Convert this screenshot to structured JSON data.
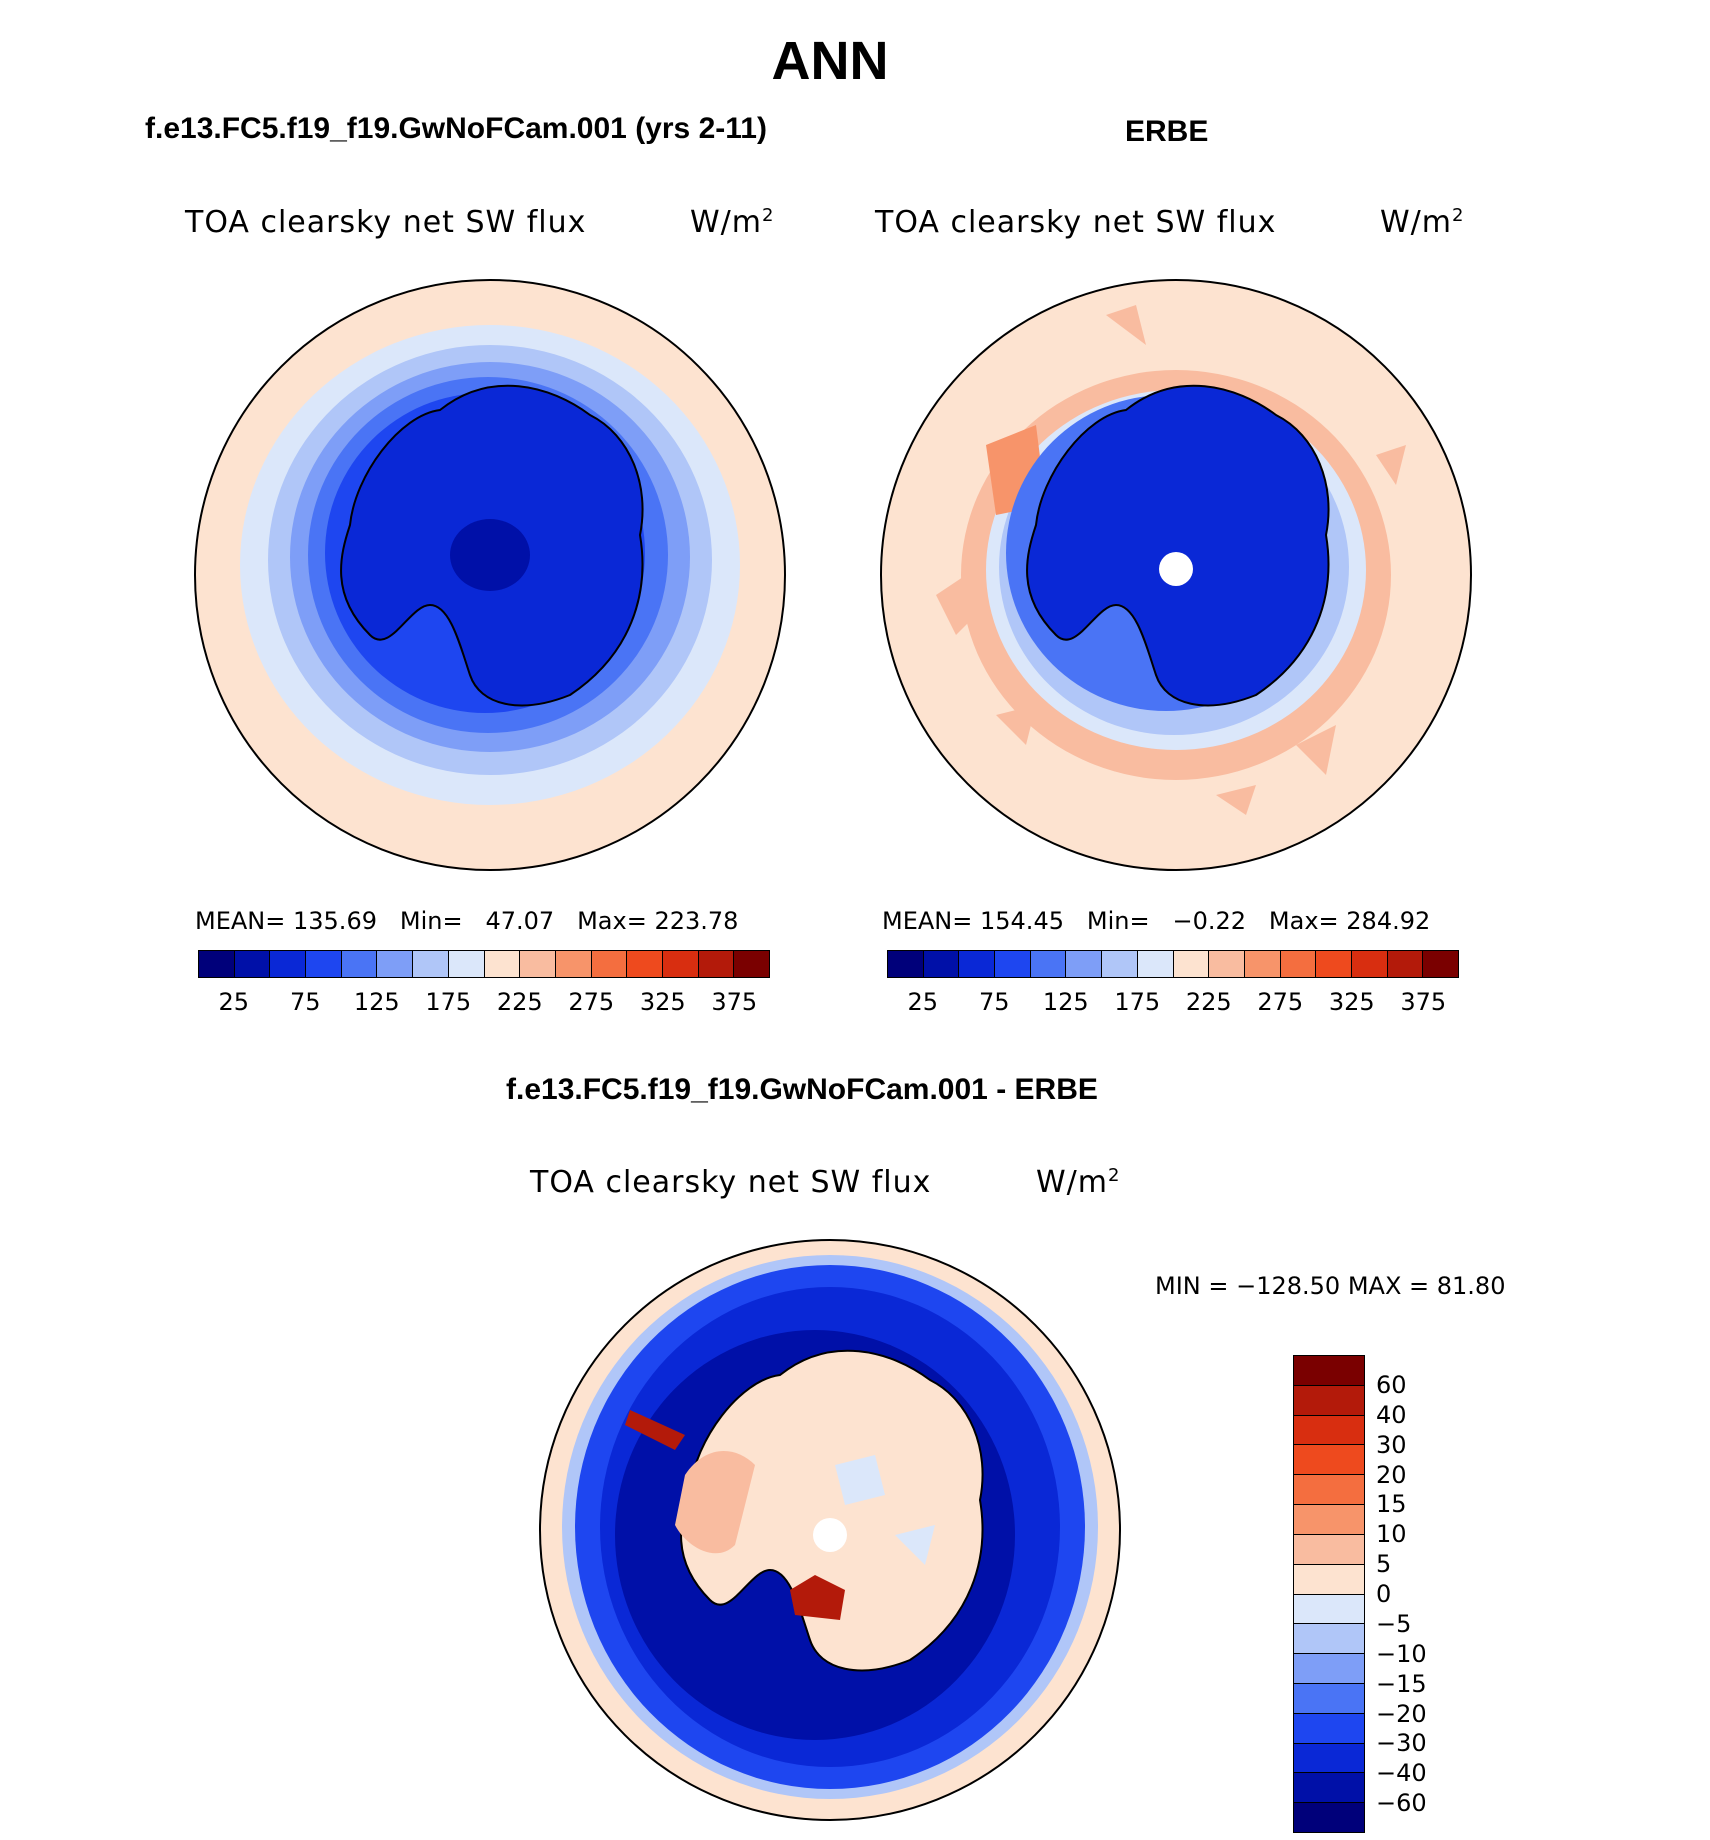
{
  "title": "ANN",
  "panels": {
    "model": {
      "case_title": "f.e13.FC5.f19_f19.GwNoFCam.001 (yrs 2-11)",
      "variable": "TOA clearsky net SW flux",
      "units_base": "W/m",
      "units_exp": "2",
      "mean_label": "MEAN=",
      "mean": "135.69",
      "min_label": "Min=",
      "min": "47.07",
      "max_label": "Max=",
      "max": "223.78"
    },
    "obs": {
      "case_title": "ERBE",
      "variable": "TOA clearsky net SW flux",
      "units_base": "W/m",
      "units_exp": "2",
      "mean_label": "MEAN=",
      "mean": "154.45",
      "min_label": "Min=",
      "min": "−0.22",
      "max_label": "Max=",
      "max": "284.92"
    },
    "diff": {
      "case_title": "f.e13.FC5.f19_f19.GwNoFCam.001 - ERBE",
      "variable": "TOA clearsky net SW flux",
      "units_base": "W/m",
      "units_exp": "2",
      "minmax": "MIN = −128.50 MAX =   81.80"
    }
  },
  "colorbar_abs": {
    "ticks": [
      "25",
      "75",
      "125",
      "175",
      "225",
      "275",
      "325",
      "375"
    ],
    "colors": [
      "#00007a",
      "#0010a8",
      "#0a28d6",
      "#1e46f0",
      "#4a74f5",
      "#7e9ef7",
      "#b0c6f8",
      "#dbe7fa",
      "#fde3d0",
      "#f9bca0",
      "#f7946a",
      "#f46e3f",
      "#ee4a1e",
      "#d82e10",
      "#b31a0a",
      "#7a0000"
    ]
  },
  "colorbar_diff": {
    "ticks": [
      "60",
      "40",
      "30",
      "20",
      "15",
      "10",
      "5",
      "0",
      "−5",
      "−10",
      "−15",
      "−20",
      "−30",
      "−40",
      "−60"
    ],
    "colors": [
      "#7a0000",
      "#b31a0a",
      "#d82e10",
      "#ee4a1e",
      "#f46e3f",
      "#f7946a",
      "#f9bca0",
      "#fde3d0",
      "#dbe7fa",
      "#b0c6f8",
      "#7e9ef7",
      "#4a74f5",
      "#1e46f0",
      "#0a28d6",
      "#0010a8",
      "#00007a"
    ]
  },
  "colors": {
    "ocean_outer": "#fde3d0",
    "dark_blue": "#0a28d6",
    "mid_blue": "#1e46f0",
    "light_blue": "#b0c6f8",
    "pale_blue": "#dbe7fa",
    "salmon": "#f7946a",
    "dark_red": "#b31a0a"
  }
}
